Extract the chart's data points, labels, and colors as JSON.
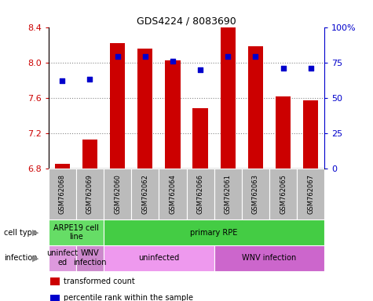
{
  "title": "GDS4224 / 8083690",
  "samples": [
    "GSM762068",
    "GSM762069",
    "GSM762060",
    "GSM762062",
    "GSM762064",
    "GSM762066",
    "GSM762061",
    "GSM762063",
    "GSM762065",
    "GSM762067"
  ],
  "transformed_counts": [
    6.85,
    7.13,
    8.22,
    8.16,
    8.02,
    7.48,
    8.4,
    8.18,
    7.62,
    7.57
  ],
  "percentile_ranks": [
    62,
    63,
    79,
    79,
    76,
    70,
    79,
    79,
    71,
    71
  ],
  "ylim": [
    6.8,
    8.4
  ],
  "yticks": [
    6.8,
    7.2,
    7.6,
    8.0,
    8.4
  ],
  "right_yticks": [
    0,
    25,
    50,
    75,
    100
  ],
  "bar_color": "#cc0000",
  "dot_color": "#0000cc",
  "bar_bottom": 6.8,
  "cell_type_groups": [
    {
      "label": "ARPE19 cell\nline",
      "start": 0,
      "end": 2,
      "color": "#66dd66"
    },
    {
      "label": "primary RPE",
      "start": 2,
      "end": 10,
      "color": "#44cc44"
    }
  ],
  "infection_groups": [
    {
      "label": "uninfect\ned",
      "start": 0,
      "end": 1,
      "color": "#dd99dd"
    },
    {
      "label": "WNV\ninfection",
      "start": 1,
      "end": 2,
      "color": "#cc88cc"
    },
    {
      "label": "uninfected",
      "start": 2,
      "end": 6,
      "color": "#ee99ee"
    },
    {
      "label": "WNV infection",
      "start": 6,
      "end": 10,
      "color": "#cc66cc"
    }
  ],
  "tick_bg_color": "#bbbbbb",
  "grid_color": "#888888",
  "left_axis_color": "#cc0000",
  "right_axis_color": "#0000cc",
  "legend_items": [
    {
      "label": "transformed count",
      "color": "#cc0000"
    },
    {
      "label": "percentile rank within the sample",
      "color": "#0000cc"
    }
  ],
  "row_labels": [
    "cell type",
    "infection"
  ]
}
